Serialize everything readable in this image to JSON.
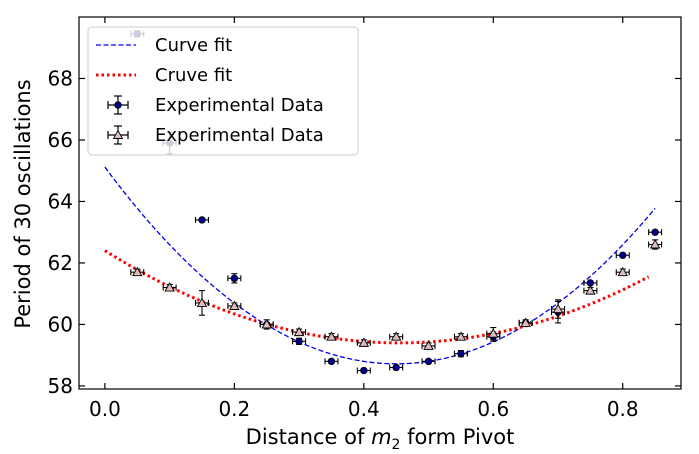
{
  "chart_data": {
    "type": "scatter",
    "xlabel_parts": [
      "Distance of ",
      "m",
      "2",
      " form Pivot"
    ],
    "ylabel": "Period of 30 oscillations",
    "xlim": [
      -0.04,
      0.89
    ],
    "ylim": [
      57.9,
      70.0
    ],
    "xticks": [
      0.0,
      0.2,
      0.4,
      0.6,
      0.8
    ],
    "xtick_labels": [
      "0.0",
      "0.2",
      "0.4",
      "0.6",
      "0.8"
    ],
    "yticks": [
      58,
      60,
      62,
      64,
      66,
      68
    ],
    "ytick_labels": [
      "58",
      "60",
      "62",
      "64",
      "66",
      "68"
    ],
    "grid": false,
    "legend_position": "upper-left",
    "fits": [
      {
        "name": "Curve fit",
        "color": "#0000ee",
        "style": "dashed",
        "x_range": [
          0.0,
          0.85
        ],
        "quadratic": {
          "a": 31.6,
          "h": 0.45,
          "k": 58.72
        }
      },
      {
        "name": "Cruve fit",
        "color": "#ff0000",
        "style": "dotted",
        "x_range": [
          0.0,
          0.84
        ],
        "quadratic": {
          "a": 14.5,
          "h": 0.455,
          "k": 59.4
        }
      }
    ],
    "series": [
      {
        "name": "Experimental Data",
        "marker": "circle",
        "color": "#00008b",
        "points": [
          {
            "x": 0.05,
            "y": 69.45,
            "xerr": 0.01,
            "yerr": 0.1
          },
          {
            "x": 0.1,
            "y": 65.9,
            "xerr": 0.01,
            "yerr": 0.35
          },
          {
            "x": 0.15,
            "y": 63.4,
            "xerr": 0.01,
            "yerr": 0.05
          },
          {
            "x": 0.2,
            "y": 61.5,
            "xerr": 0.01,
            "yerr": 0.15
          },
          {
            "x": 0.25,
            "y": 60.0,
            "xerr": 0.01,
            "yerr": 0.05
          },
          {
            "x": 0.3,
            "y": 59.45,
            "xerr": 0.01,
            "yerr": 0.1
          },
          {
            "x": 0.35,
            "y": 58.8,
            "xerr": 0.01,
            "yerr": 0.05
          },
          {
            "x": 0.4,
            "y": 58.5,
            "xerr": 0.01,
            "yerr": 0.05
          },
          {
            "x": 0.45,
            "y": 58.6,
            "xerr": 0.01,
            "yerr": 0.05
          },
          {
            "x": 0.5,
            "y": 58.8,
            "xerr": 0.01,
            "yerr": 0.05
          },
          {
            "x": 0.55,
            "y": 59.05,
            "xerr": 0.01,
            "yerr": 0.1
          },
          {
            "x": 0.6,
            "y": 59.6,
            "xerr": 0.01,
            "yerr": 0.15
          },
          {
            "x": 0.65,
            "y": 60.05,
            "xerr": 0.01,
            "yerr": 0.05
          },
          {
            "x": 0.7,
            "y": 60.4,
            "xerr": 0.01,
            "yerr": 0.35
          },
          {
            "x": 0.75,
            "y": 61.35,
            "xerr": 0.01,
            "yerr": 0.05
          },
          {
            "x": 0.8,
            "y": 62.25,
            "xerr": 0.01,
            "yerr": 0.05
          },
          {
            "x": 0.85,
            "y": 63.0,
            "xerr": 0.01,
            "yerr": 0.05
          }
        ]
      },
      {
        "name": "Experimental Data",
        "marker": "triangle",
        "color": "#dcbcbc",
        "points": [
          {
            "x": 0.05,
            "y": 61.7,
            "xerr": 0.01,
            "yerr": 0.1
          },
          {
            "x": 0.1,
            "y": 61.2,
            "xerr": 0.01,
            "yerr": 0.1
          },
          {
            "x": 0.15,
            "y": 60.7,
            "xerr": 0.01,
            "yerr": 0.4
          },
          {
            "x": 0.2,
            "y": 60.6,
            "xerr": 0.01,
            "yerr": 0.1
          },
          {
            "x": 0.25,
            "y": 60.0,
            "xerr": 0.01,
            "yerr": 0.15
          },
          {
            "x": 0.3,
            "y": 59.75,
            "xerr": 0.01,
            "yerr": 0.1
          },
          {
            "x": 0.35,
            "y": 59.6,
            "xerr": 0.01,
            "yerr": 0.1
          },
          {
            "x": 0.4,
            "y": 59.4,
            "xerr": 0.01,
            "yerr": 0.1
          },
          {
            "x": 0.45,
            "y": 59.6,
            "xerr": 0.01,
            "yerr": 0.1
          },
          {
            "x": 0.5,
            "y": 59.3,
            "xerr": 0.01,
            "yerr": 0.1
          },
          {
            "x": 0.55,
            "y": 59.6,
            "xerr": 0.01,
            "yerr": 0.1
          },
          {
            "x": 0.6,
            "y": 59.7,
            "xerr": 0.01,
            "yerr": 0.2
          },
          {
            "x": 0.65,
            "y": 60.05,
            "xerr": 0.01,
            "yerr": 0.1
          },
          {
            "x": 0.7,
            "y": 60.5,
            "xerr": 0.01,
            "yerr": 0.3
          },
          {
            "x": 0.75,
            "y": 61.1,
            "xerr": 0.01,
            "yerr": 0.1
          },
          {
            "x": 0.8,
            "y": 61.7,
            "xerr": 0.01,
            "yerr": 0.1
          },
          {
            "x": 0.85,
            "y": 62.6,
            "xerr": 0.01,
            "yerr": 0.15
          }
        ]
      }
    ]
  }
}
